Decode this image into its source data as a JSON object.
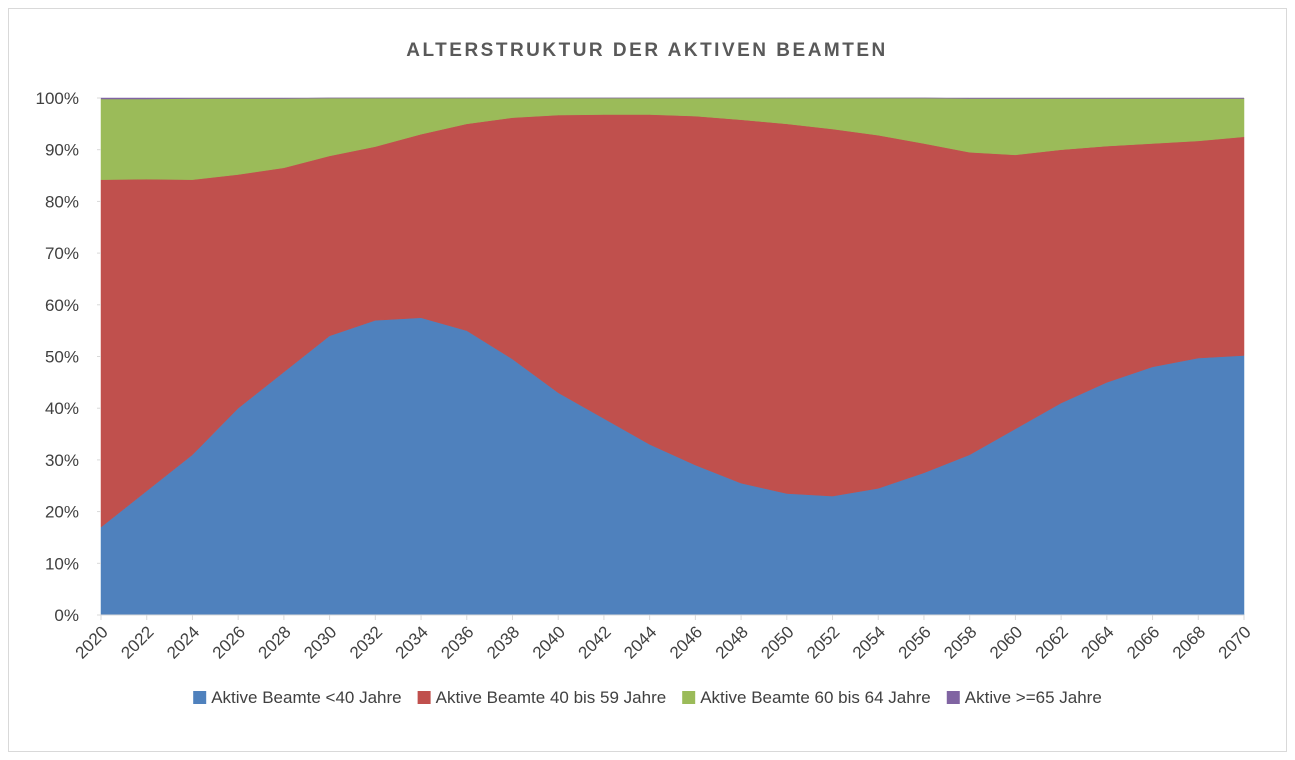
{
  "chart_data": {
    "type": "stacked_area",
    "title": "ALTERSTRUKTUR DER AKTIVEN BEAMTEN",
    "x": [
      2020,
      2022,
      2024,
      2026,
      2028,
      2030,
      2032,
      2034,
      2036,
      2038,
      2040,
      2042,
      2044,
      2046,
      2048,
      2050,
      2052,
      2054,
      2056,
      2058,
      2060,
      2062,
      2064,
      2066,
      2068,
      2070
    ],
    "xlim": [
      2020,
      2070
    ],
    "xticks": [
      2020,
      2022,
      2024,
      2026,
      2028,
      2030,
      2032,
      2034,
      2036,
      2038,
      2040,
      2042,
      2044,
      2046,
      2048,
      2050,
      2052,
      2054,
      2056,
      2058,
      2060,
      2062,
      2064,
      2066,
      2068,
      2070
    ],
    "ylim": [
      0,
      100
    ],
    "yticks": [
      {
        "value": 0,
        "label": "0%"
      },
      {
        "value": 10,
        "label": "10%"
      },
      {
        "value": 20,
        "label": "20%"
      },
      {
        "value": 30,
        "label": "30%"
      },
      {
        "value": 40,
        "label": "40%"
      },
      {
        "value": 50,
        "label": "50%"
      },
      {
        "value": 60,
        "label": "60%"
      },
      {
        "value": 70,
        "label": "70%"
      },
      {
        "value": 80,
        "label": "80%"
      },
      {
        "value": 90,
        "label": "90%"
      },
      {
        "value": 100,
        "label": "100%"
      }
    ],
    "legend": "bottom",
    "series": [
      {
        "name": "Aktive Beamte <40 Jahre",
        "color": "#4f81bd",
        "values": [
          17,
          24,
          31,
          40,
          47,
          54,
          57,
          57.5,
          55,
          49.5,
          43,
          38,
          33,
          29,
          25.5,
          23.5,
          23,
          24.5,
          27.5,
          31,
          36,
          41,
          45,
          48,
          49.7,
          50.2
        ]
      },
      {
        "name": "Aktive Beamte 40 bis 59 Jahre",
        "color": "#c0504d",
        "values": [
          67.2,
          60.3,
          53.2,
          45.2,
          39.5,
          34.8,
          33.6,
          35.5,
          40,
          46.7,
          53.7,
          58.8,
          63.8,
          67.5,
          70.3,
          71.5,
          71,
          68.3,
          63.7,
          58.5,
          53,
          49,
          45.7,
          43.2,
          42,
          42.3
        ]
      },
      {
        "name": "Aktive Beamte 60 bis 64 Jahre",
        "color": "#9bbb59",
        "values": [
          15.6,
          15.5,
          15.7,
          14.7,
          13.4,
          11.2,
          9.4,
          7,
          5,
          3.8,
          3.3,
          3.2,
          3.2,
          3.5,
          4.2,
          5,
          6,
          7.2,
          8.8,
          10.4,
          10.9,
          9.9,
          9.2,
          8.7,
          8.2,
          7.4
        ]
      },
      {
        "name": "Aktive >=65 Jahre",
        "color": "#8064a2",
        "values": [
          0.2,
          0.2,
          0.1,
          0.1,
          0.1,
          0,
          0,
          0,
          0,
          0,
          0,
          0,
          0,
          0,
          0,
          0,
          0,
          0,
          0,
          0.1,
          0.1,
          0.1,
          0.1,
          0.1,
          0.1,
          0.1
        ]
      }
    ]
  }
}
